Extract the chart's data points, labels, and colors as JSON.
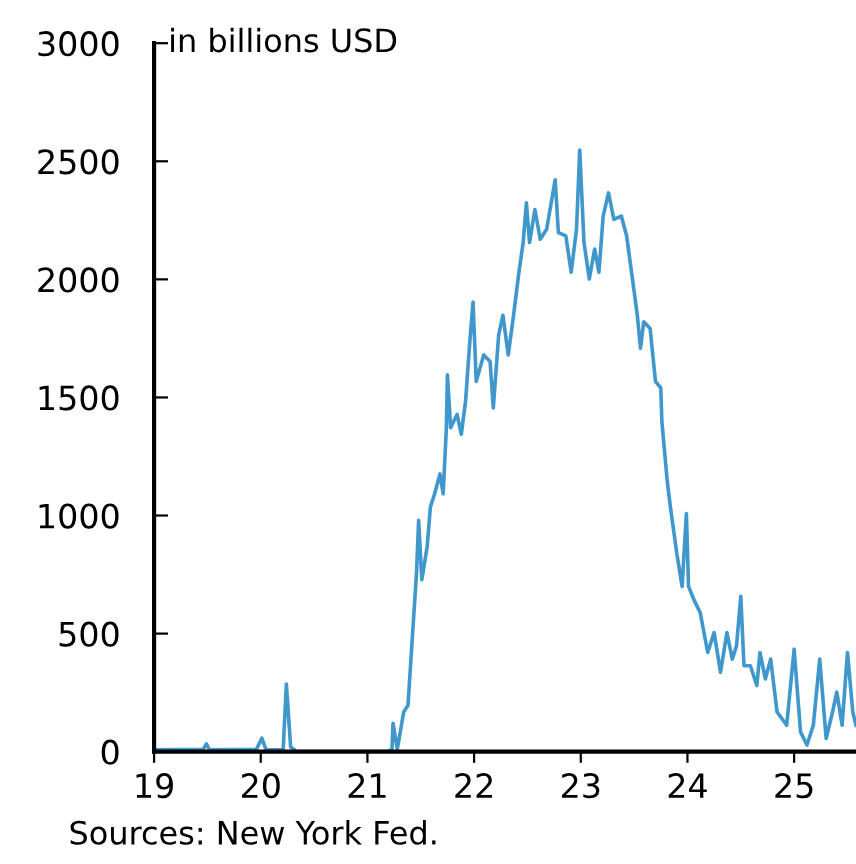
{
  "chart_data": {
    "type": "line",
    "ylabel": "in billions USD",
    "annotations": [
      "Sources: New York Fed."
    ],
    "x": [
      2019.0,
      2019.46,
      2019.49,
      2019.52,
      2019.96,
      2020.01,
      2020.05,
      2020.21,
      2020.24,
      2020.28,
      2020.34,
      2021.18,
      2021.23,
      2021.24,
      2021.28,
      2021.34,
      2021.38,
      2021.42,
      2021.46,
      2021.48,
      2021.51,
      2021.56,
      2021.59,
      2021.63,
      2021.68,
      2021.71,
      2021.74,
      2021.75,
      2021.78,
      2021.84,
      2021.88,
      2021.92,
      2021.96,
      2021.99,
      2022.02,
      2022.09,
      2022.15,
      2022.18,
      2022.23,
      2022.27,
      2022.32,
      2022.37,
      2022.42,
      2022.46,
      2022.49,
      2022.52,
      2022.57,
      2022.62,
      2022.68,
      2022.76,
      2022.79,
      2022.86,
      2022.91,
      2022.96,
      2022.99,
      2023.03,
      2023.08,
      2023.13,
      2023.17,
      2023.21,
      2023.26,
      2023.31,
      2023.38,
      2023.43,
      2023.48,
      2023.53,
      2023.56,
      2023.59,
      2023.65,
      2023.7,
      2023.75,
      2023.76,
      2023.81,
      2023.84,
      2023.9,
      2023.95,
      2023.99,
      2024.01,
      2024.06,
      2024.12,
      2024.19,
      2024.25,
      2024.31,
      2024.37,
      2024.42,
      2024.46,
      2024.5,
      2024.53,
      2024.59,
      2024.65,
      2024.68,
      2024.73,
      2024.78,
      2024.84,
      2024.93,
      2025.0,
      2025.06,
      2025.12,
      2025.18,
      2025.24,
      2025.3,
      2025.36,
      2025.4,
      2025.45,
      2025.5,
      2025.55,
      2025.58
    ],
    "series": [
      {
        "color": "#3f97cc",
        "values": [
          8,
          10,
          33,
          8,
          10,
          57,
          8,
          8,
          286,
          20,
          0,
          0,
          10,
          120,
          10,
          168,
          196,
          476,
          756,
          980,
          728,
          868,
          1036,
          1092,
          1176,
          1092,
          1372,
          1596,
          1372,
          1428,
          1344,
          1484,
          1736,
          1904,
          1568,
          1680,
          1652,
          1456,
          1764,
          1848,
          1680,
          1848,
          2030,
          2156,
          2324,
          2156,
          2296,
          2170,
          2212,
          2422,
          2198,
          2184,
          2030,
          2212,
          2548,
          2156,
          2002,
          2128,
          2030,
          2268,
          2366,
          2254,
          2268,
          2184,
          2016,
          1848,
          1708,
          1820,
          1792,
          1568,
          1540,
          1400,
          1148,
          1036,
          840,
          700,
          1008,
          700,
          644,
          588,
          420,
          504,
          336,
          504,
          392,
          448,
          658,
          364,
          364,
          280,
          420,
          308,
          392,
          168,
          112,
          434,
          84,
          28,
          112,
          392,
          56,
          168,
          252,
          112,
          420,
          168,
          112
        ]
      }
    ],
    "xlim": [
      2019,
      2025.58
    ],
    "xticks": [
      {
        "value": 2019,
        "label": "19"
      },
      {
        "value": 2020,
        "label": "20"
      },
      {
        "value": 2021,
        "label": "21"
      },
      {
        "value": 2022,
        "label": "22"
      },
      {
        "value": 2023,
        "label": "23"
      },
      {
        "value": 2024,
        "label": "24"
      },
      {
        "value": 2025,
        "label": "25"
      }
    ],
    "ylim": [
      0,
      3000
    ],
    "yticks": [
      0,
      500,
      1000,
      1500,
      2000,
      2500,
      3000
    ],
    "grid": false,
    "legend": false
  }
}
